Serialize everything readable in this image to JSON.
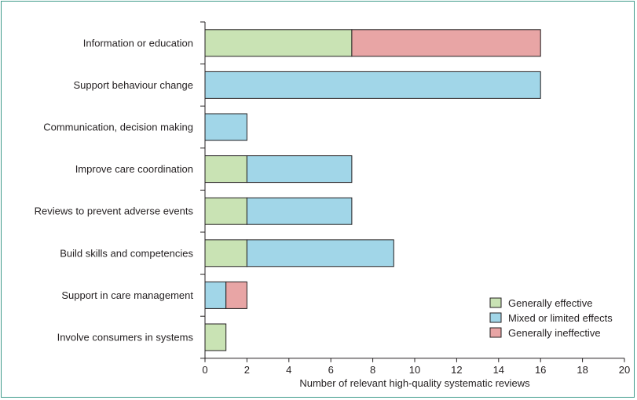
{
  "chart_data": {
    "type": "bar",
    "orientation": "horizontal",
    "stacked": true,
    "categories": [
      "Information or education",
      "Support behaviour change",
      "Communication, decision making",
      "Improve care coordination",
      "Reviews to prevent adverse events",
      "Build skills and competencies",
      "Support in care management",
      "Involve consumers in systems"
    ],
    "series": [
      {
        "name": "Generally effective",
        "color": "#c9e3b4",
        "values": [
          7,
          0,
          0,
          2,
          2,
          2,
          0,
          1
        ]
      },
      {
        "name": "Mixed or limited effects",
        "color": "#a1d6e8",
        "values": [
          0,
          16,
          2,
          5,
          5,
          7,
          1,
          0
        ]
      },
      {
        "name": "Generally ineffective",
        "color": "#e8a5a5",
        "values": [
          9,
          0,
          0,
          0,
          0,
          0,
          1,
          0
        ]
      }
    ],
    "xlabel": "Number of relevant high-quality systematic reviews",
    "xlim": [
      0,
      20
    ],
    "xticks": [
      0,
      2,
      4,
      6,
      8,
      10,
      12,
      14,
      16,
      18,
      20
    ],
    "grid": false,
    "legend_position": "bottom-right"
  }
}
